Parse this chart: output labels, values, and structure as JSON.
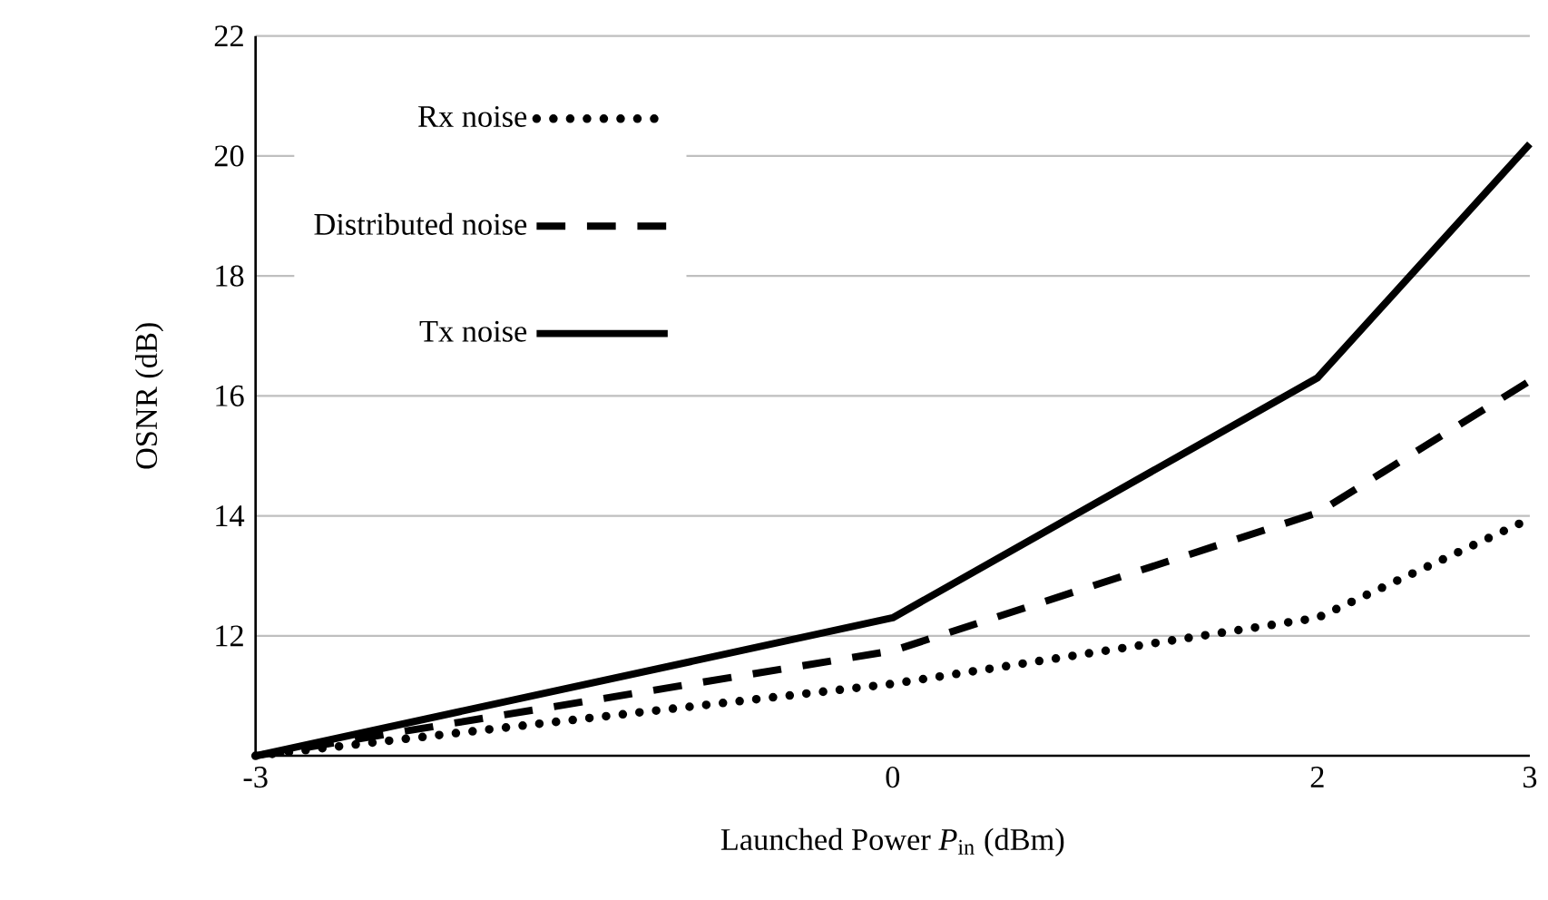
{
  "chart_data": {
    "type": "line",
    "xlabel": "Launched Power *P*$_{in}$ (dBm)",
    "ylabel": "OSNR (dB)",
    "x": [
      -3,
      0,
      2,
      3
    ],
    "series": [
      {
        "name": "Rx noise",
        "color": "#000000",
        "line_style": "dotted",
        "values": [
          10,
          11.2,
          12.3,
          13.95
        ]
      },
      {
        "name": "Distributed noise",
        "color": "#000000",
        "line_style": "dashed",
        "values": [
          10,
          11.75,
          14.05,
          16.25
        ]
      },
      {
        "name": "Tx noise",
        "color": "#000000",
        "line_style": "solid",
        "values": [
          10,
          12.3,
          16.3,
          20.2
        ]
      }
    ],
    "xlim": [
      -3,
      3
    ],
    "xticks": [
      -3,
      0,
      2,
      3
    ],
    "ylim": [
      10,
      22
    ],
    "yticks": [
      {
        "value": 10,
        "label": null
      },
      12,
      14,
      16,
      18,
      20,
      22
    ],
    "grid": "y",
    "legend": "top left",
    "marker": "none"
  }
}
